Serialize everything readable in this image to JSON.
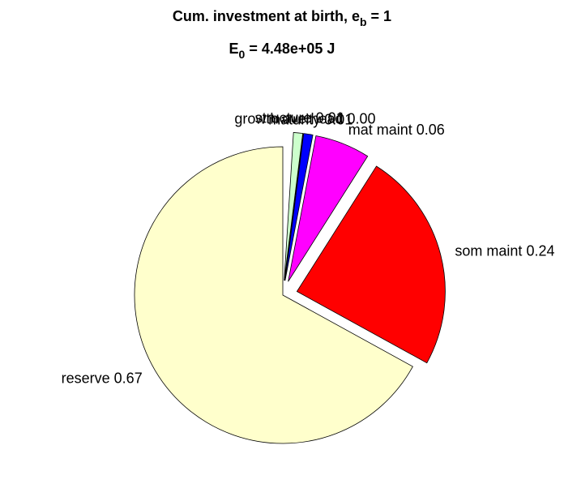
{
  "chart_data": {
    "type": "pie",
    "title": [
      "Cum. investment at birth, e",
      "b",
      " = 1"
    ],
    "subtitle": [
      "E",
      "0",
      " = 4.48e+05 J"
    ],
    "categories": [
      "reserve",
      "som maint",
      "mat maint",
      "maturity",
      "growth overhead",
      "structure"
    ],
    "values": [
      0.67,
      0.24,
      0.06,
      0.01,
      0.0,
      0.01
    ],
    "value_labels": [
      "0.67",
      "0.24",
      "0.06",
      "0.01",
      "0.00",
      "0.01"
    ],
    "colors": [
      "#ffffcc",
      "#ff0000",
      "#ff00ff",
      "#0000ff",
      "#008000",
      "#ccffcc"
    ],
    "explode": [
      false,
      true,
      true,
      true,
      true,
      true
    ]
  }
}
